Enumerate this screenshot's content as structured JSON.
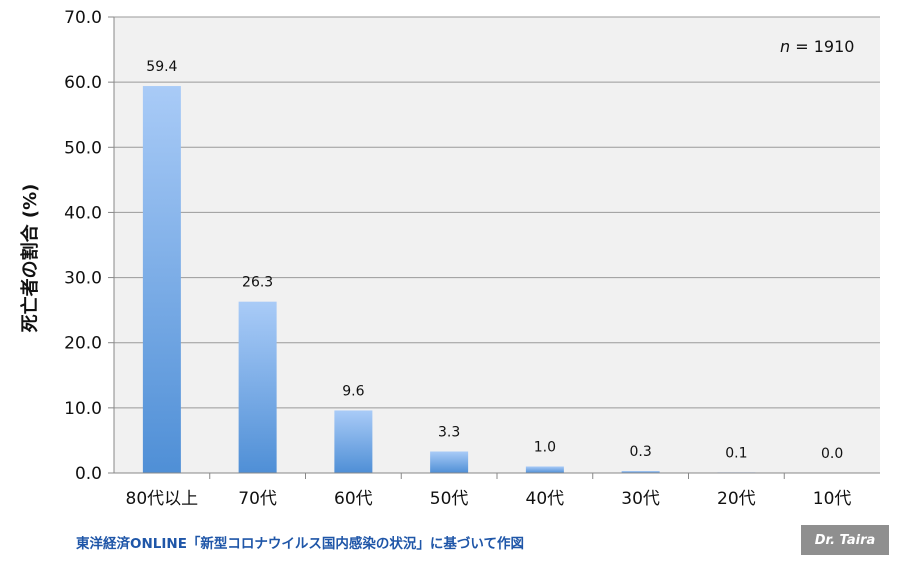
{
  "chart_data": {
    "type": "bar",
    "ylabel": "死亡者の割合 (%)",
    "xlabel": "",
    "categories": [
      "80代以上",
      "70代",
      "60代",
      "50代",
      "40代",
      "30代",
      "20代",
      "10代"
    ],
    "values": [
      59.4,
      26.3,
      9.6,
      3.3,
      1.0,
      0.3,
      0.1,
      0.0
    ],
    "data_labels": [
      "59.4",
      "26.3",
      "9.6",
      "3.3",
      "1.0",
      "0.3",
      "0.1",
      "0.0"
    ],
    "ylim": [
      0,
      70
    ],
    "yticks": [
      "0.0",
      "10.0",
      "20.0",
      "30.0",
      "40.0",
      "50.0",
      "60.0",
      "70.0"
    ],
    "grid": true,
    "annotation": {
      "italic": "n",
      "rest": " = 1910"
    },
    "bar_color_top": "#a9cbf7",
    "bar_color_bottom": "#4f8fd6",
    "plot_background": "#f1f1f1",
    "grid_color": "#9a9a9a"
  },
  "source_text": "東洋経済ONLINE「新型コロナウイルス国内感染の状況」に基づいて作図",
  "credit_text": "Dr. Taira"
}
